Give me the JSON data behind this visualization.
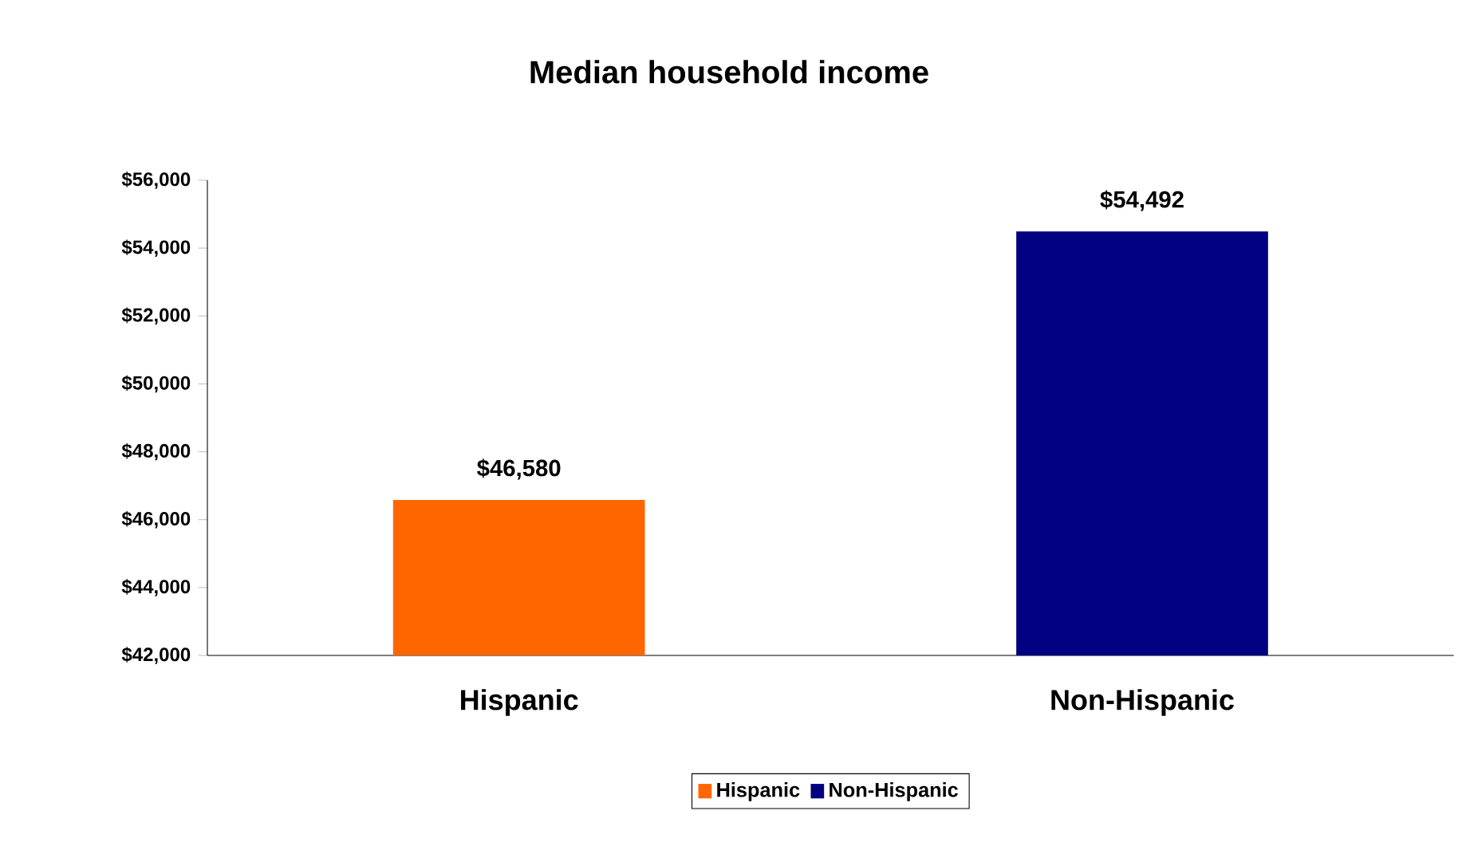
{
  "chart_data": {
    "type": "bar",
    "title": "Median household income",
    "categories": [
      "Hispanic",
      "Non-Hispanic"
    ],
    "series": [
      {
        "name": "Hispanic",
        "color": "#ff6600",
        "values": [
          46580,
          null
        ],
        "value_labels": [
          "$46,580",
          null
        ]
      },
      {
        "name": "Non-Hispanic",
        "color": "#000080",
        "values": [
          null,
          54492
        ],
        "value_labels": [
          null,
          "$54,492"
        ]
      }
    ],
    "ylim": [
      42000,
      56000
    ],
    "yticks": [
      {
        "value": 42000,
        "label": "$42,000"
      },
      {
        "value": 44000,
        "label": "$44,000"
      },
      {
        "value": 46000,
        "label": "$46,000"
      },
      {
        "value": 48000,
        "label": "$48,000"
      },
      {
        "value": 50000,
        "label": "$50,000"
      },
      {
        "value": 52000,
        "label": "$52,000"
      },
      {
        "value": 54000,
        "label": "$54,000"
      },
      {
        "value": 56000,
        "label": "$56,000"
      }
    ],
    "legend": "bottom"
  }
}
